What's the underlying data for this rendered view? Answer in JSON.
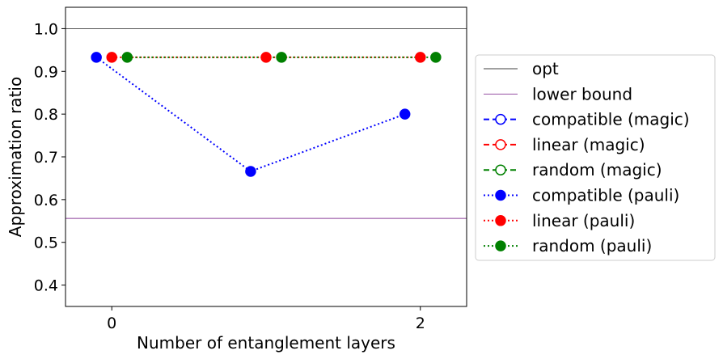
{
  "chart_data": {
    "type": "line",
    "xlabel": "Number of entanglement layers",
    "ylabel": "Approximation ratio",
    "xlim": [
      -0.3,
      2.3
    ],
    "ylim": [
      0.35,
      1.05
    ],
    "xticks": [
      0,
      2
    ],
    "xtick_labels": [
      "0",
      "2"
    ],
    "yticks": [
      0.4,
      0.5,
      0.6,
      0.7,
      0.8,
      0.9,
      1.0
    ],
    "ytick_labels": [
      "0.4",
      "0.5",
      "0.6",
      "0.7",
      "0.8",
      "0.9",
      "1.0"
    ],
    "grid": false,
    "legend_position": "right-outside",
    "reference_lines": [
      {
        "name": "opt",
        "y": 1.0,
        "color": "#404040"
      },
      {
        "name": "lower bound",
        "y": 0.556,
        "color": "#8a3f99"
      }
    ],
    "series": [
      {
        "name": "compatible (magic)",
        "color": "#0000ff",
        "linestyle": "dashed",
        "marker": "open",
        "x": [],
        "y": []
      },
      {
        "name": "linear (magic)",
        "color": "#ff0000",
        "linestyle": "dashed",
        "marker": "open",
        "x": [],
        "y": []
      },
      {
        "name": "random (magic)",
        "color": "#008000",
        "linestyle": "dashed",
        "marker": "open",
        "x": [],
        "y": []
      },
      {
        "name": "compatible (pauli)",
        "color": "#0000ff",
        "linestyle": "dotted",
        "marker": "filled",
        "x": [
          -0.1,
          0.9,
          1.9
        ],
        "y": [
          0.933,
          0.666,
          0.8
        ]
      },
      {
        "name": "linear (pauli)",
        "color": "#ff0000",
        "linestyle": "dotted",
        "marker": "filled",
        "x": [
          0.0,
          1.0,
          2.0
        ],
        "y": [
          0.933,
          0.933,
          0.933
        ]
      },
      {
        "name": "random (pauli)",
        "color": "#008000",
        "linestyle": "dotted",
        "marker": "filled",
        "x": [
          0.1,
          1.1,
          2.1
        ],
        "y": [
          0.933,
          0.933,
          0.933
        ]
      }
    ]
  }
}
